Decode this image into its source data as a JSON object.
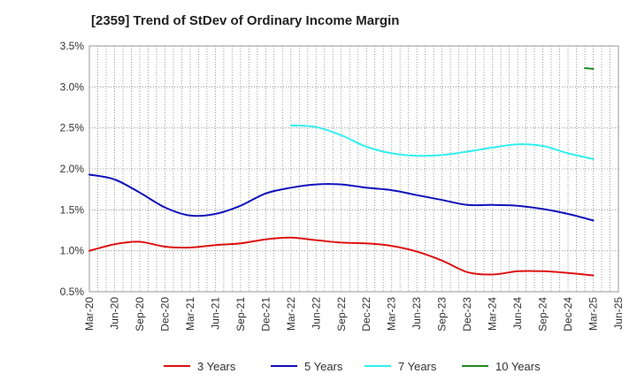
{
  "chart_data": {
    "type": "line",
    "title": "[2359]  Trend of StDev of Ordinary Income Margin",
    "xlabel": "",
    "ylabel": "",
    "ylim": [
      0.5,
      3.5
    ],
    "yticks": [
      0.5,
      1.0,
      1.5,
      2.0,
      2.5,
      3.0,
      3.5
    ],
    "ytick_labels": [
      "0.5%",
      "1.0%",
      "1.5%",
      "2.0%",
      "2.5%",
      "3.0%",
      "3.5%"
    ],
    "xtick_labels": [
      "Mar-20",
      "Jun-20",
      "Sep-20",
      "Dec-20",
      "Mar-21",
      "Jun-21",
      "Sep-21",
      "Dec-21",
      "Mar-22",
      "Jun-22",
      "Sep-22",
      "Dec-22",
      "Mar-23",
      "Jun-23",
      "Sep-23",
      "Dec-23",
      "Mar-24",
      "Jun-24",
      "Sep-24",
      "Dec-24",
      "Mar-25",
      "Jun-25"
    ],
    "grid": true,
    "legend_position": "bottom",
    "series": [
      {
        "name": "3 Years",
        "color": "#dd1111",
        "x": [
          "Mar-20",
          "Jun-20",
          "Sep-20",
          "Dec-20",
          "Mar-21",
          "Jun-21",
          "Sep-21",
          "Dec-21",
          "Mar-22",
          "Jun-22",
          "Sep-22",
          "Dec-22",
          "Mar-23",
          "Jun-23",
          "Sep-23",
          "Dec-23",
          "Mar-24",
          "Jun-24",
          "Sep-24",
          "Dec-24",
          "Mar-25"
        ],
        "values": [
          1.0,
          1.08,
          1.11,
          1.05,
          1.04,
          1.07,
          1.09,
          1.14,
          1.16,
          1.13,
          1.1,
          1.09,
          1.06,
          0.99,
          0.88,
          0.74,
          0.71,
          0.75,
          0.75,
          0.73,
          0.7
        ]
      },
      {
        "name": "5 Years",
        "color": "#1111bb",
        "x": [
          "Mar-20",
          "Jun-20",
          "Sep-20",
          "Dec-20",
          "Mar-21",
          "Jun-21",
          "Sep-21",
          "Dec-21",
          "Mar-22",
          "Jun-22",
          "Sep-22",
          "Dec-22",
          "Mar-23",
          "Jun-23",
          "Sep-23",
          "Dec-23",
          "Mar-24",
          "Jun-24",
          "Sep-24",
          "Dec-24",
          "Mar-25"
        ],
        "values": [
          1.93,
          1.87,
          1.71,
          1.53,
          1.43,
          1.45,
          1.55,
          1.7,
          1.77,
          1.81,
          1.81,
          1.77,
          1.74,
          1.68,
          1.62,
          1.56,
          1.56,
          1.55,
          1.51,
          1.45,
          1.37
        ]
      },
      {
        "name": "7 Years",
        "color": "#33eeee",
        "x": [
          "Mar-22",
          "Jun-22",
          "Sep-22",
          "Dec-22",
          "Mar-23",
          "Jun-23",
          "Sep-23",
          "Dec-23",
          "Mar-24",
          "Jun-24",
          "Sep-24",
          "Dec-24",
          "Mar-25"
        ],
        "values": [
          2.53,
          2.51,
          2.41,
          2.27,
          2.19,
          2.16,
          2.17,
          2.21,
          2.26,
          2.3,
          2.28,
          2.19,
          2.12
        ]
      },
      {
        "name": "10 Years",
        "color": "#228822",
        "x": [
          "Feb-25",
          "Mar-25"
        ],
        "values": [
          3.23,
          3.22
        ]
      }
    ]
  }
}
